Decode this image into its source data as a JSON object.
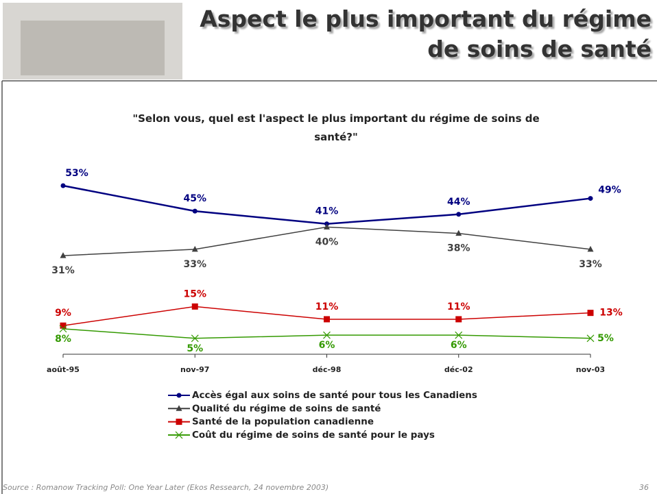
{
  "header": {
    "title_lines": [
      "Aspect le plus important du régime",
      "de soins de santé"
    ]
  },
  "chart_data": {
    "type": "line",
    "title_lines": [
      "\"Selon vous, quel est l'aspect le plus important du régime de soins de",
      "santé?\""
    ],
    "categories": [
      "août-95",
      "nov-97",
      "déc-98",
      "déc-02",
      "nov-03"
    ],
    "series": [
      {
        "name": "Accès égal aux soins de santé pour tous les Canadiens",
        "color": "#000080",
        "marker": "circle",
        "values": [
          53,
          45,
          41,
          44,
          49
        ],
        "value_labels": [
          "53%",
          "45%",
          "41%",
          "44%",
          "49%"
        ]
      },
      {
        "name": "Qualité du régime de soins de santé",
        "color": "#404040",
        "marker": "triangle",
        "values": [
          31,
          33,
          40,
          38,
          33
        ],
        "value_labels": [
          "31%",
          "33%",
          "40%",
          "38%",
          "33%"
        ]
      },
      {
        "name": "Santé de la population canadienne",
        "color": "#cc0000",
        "marker": "square",
        "values": [
          9,
          15,
          11,
          11,
          13
        ],
        "value_labels": [
          "9%",
          "15%",
          "11%",
          "11%",
          "13%"
        ]
      },
      {
        "name": "Coût du régime de soins de santé pour le pays",
        "color": "#339900",
        "marker": "x",
        "values": [
          8,
          5,
          6,
          6,
          5
        ],
        "value_labels": [
          "8%",
          "5%",
          "6%",
          "6%",
          "5%"
        ]
      }
    ]
  },
  "footer": {
    "source": "Source : Romanow Tracking Poll:  One Year Later (Ekos Ressearch, 24 novembre 2003)",
    "page": "36"
  }
}
